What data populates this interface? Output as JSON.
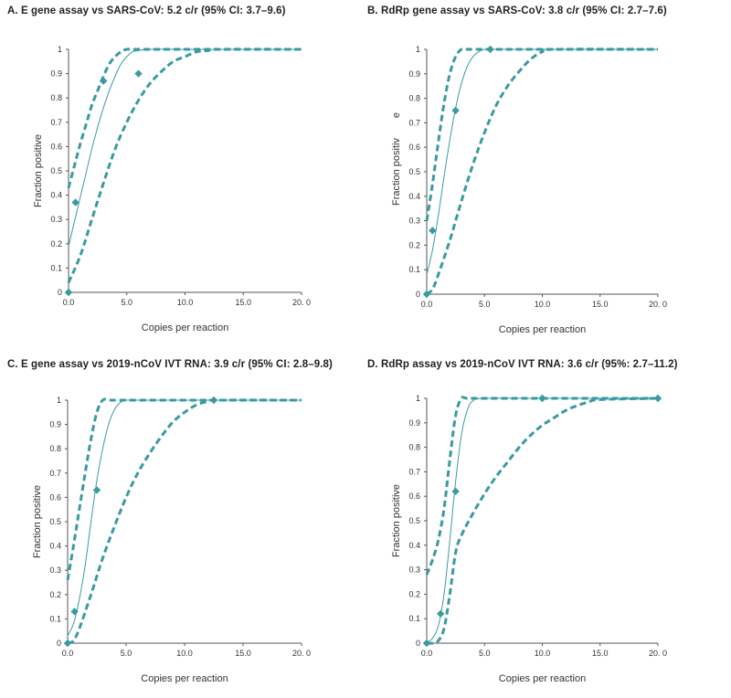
{
  "chart_data": [
    {
      "type": "line",
      "title": "A. E gene assay vs SARS-CoV: 5.2 c/r (95% CI: 3.7–9.6)",
      "xlabel": "Copies per reaction",
      "ylabel": "Fraction positive",
      "xlim": [
        0,
        20
      ],
      "ylim": [
        0,
        1
      ],
      "x_ticks": [
        "0.0",
        "5.0",
        "10.0",
        "15.0",
        "20. 0"
      ],
      "y_ticks": [
        "0",
        "0.1",
        "0.2",
        "0.3",
        "0.4",
        "0.5",
        "0.6",
        "0.7",
        "0.8",
        "0.9",
        "1"
      ],
      "series": [
        {
          "style": "points",
          "x": [
            0,
            0.6,
            3,
            6
          ],
          "y": [
            0,
            0.37,
            0.87,
            0.9
          ]
        },
        {
          "style": "solid",
          "x": [
            0,
            0.5,
            1,
            1.5,
            2,
            2.5,
            3,
            3.5,
            4,
            4.5,
            5,
            5.5,
            6,
            7,
            10,
            20
          ],
          "y": [
            0.19,
            0.29,
            0.39,
            0.49,
            0.59,
            0.68,
            0.76,
            0.83,
            0.89,
            0.94,
            0.97,
            0.99,
            0.995,
            1,
            1,
            1
          ]
        },
        {
          "style": "dashed",
          "x": [
            0,
            0.5,
            1,
            1.5,
            2,
            2.5,
            3,
            3.5,
            4,
            4.5,
            5,
            6,
            10,
            20
          ],
          "y": [
            0.43,
            0.52,
            0.61,
            0.69,
            0.77,
            0.83,
            0.89,
            0.94,
            0.97,
            0.99,
            1,
            1,
            1,
            1
          ]
        },
        {
          "style": "dashed",
          "x": [
            0,
            1,
            2,
            3,
            4,
            5,
            6,
            7,
            8,
            9,
            10,
            11,
            12,
            13,
            20
          ],
          "y": [
            0.04,
            0.15,
            0.3,
            0.45,
            0.59,
            0.7,
            0.79,
            0.86,
            0.91,
            0.95,
            0.97,
            0.99,
            0.995,
            1,
            1
          ]
        }
      ]
    },
    {
      "type": "line",
      "title": "B. RdRp gene assay vs SARS-CoV: 3.8 c/r (95% CI: 2.7–7.6)",
      "xlabel": "Copies per reaction",
      "ylabel": "Fraction positiv",
      "ylabel_suffix": "e",
      "xlim": [
        0,
        20
      ],
      "ylim": [
        0,
        1
      ],
      "x_ticks": [
        "0.0",
        "5.0",
        "10.0",
        "15.0",
        "20. 0"
      ],
      "y_ticks": [
        "0",
        "0.1",
        "0.2",
        "0.3",
        "0.4",
        "0.5",
        "0.6",
        "0.7",
        "0.8",
        "0.9",
        "1"
      ],
      "series": [
        {
          "style": "points",
          "x": [
            0,
            0.5,
            2.5,
            5.5
          ],
          "y": [
            0,
            0.26,
            0.75,
            1
          ]
        },
        {
          "style": "solid",
          "x": [
            0,
            0.5,
            1,
            1.5,
            2,
            2.5,
            3,
            3.5,
            4,
            4.5,
            5,
            6,
            10,
            20
          ],
          "y": [
            0.08,
            0.18,
            0.32,
            0.48,
            0.63,
            0.76,
            0.86,
            0.93,
            0.97,
            0.99,
            1,
            1,
            1,
            1
          ]
        },
        {
          "style": "dashed",
          "x": [
            0,
            0.5,
            1,
            1.5,
            2,
            2.5,
            3,
            3.5,
            4,
            6,
            10,
            20
          ],
          "y": [
            0.3,
            0.45,
            0.62,
            0.78,
            0.9,
            0.97,
            1,
            1,
            1,
            1,
            1,
            1
          ]
        },
        {
          "style": "dashed",
          "x": [
            0,
            0.5,
            1,
            2,
            3,
            4,
            5,
            6,
            7,
            8,
            9,
            10,
            11,
            20
          ],
          "y": [
            0,
            0.02,
            0.08,
            0.22,
            0.38,
            0.53,
            0.66,
            0.77,
            0.85,
            0.91,
            0.96,
            0.99,
            1,
            1
          ]
        }
      ]
    },
    {
      "type": "line",
      "title": "C. E gene assay vs 2019-nCoV IVT RNA: 3.9 c/r (95% CI: 2.8–9.8)",
      "xlabel": "Copies per reaction",
      "ylabel": "Fraction positive",
      "xlim": [
        0,
        20
      ],
      "ylim": [
        0,
        1
      ],
      "x_ticks": [
        "0.0",
        "5.0",
        "10.0",
        "15.0",
        "20. 0"
      ],
      "y_ticks": [
        "0",
        "0.1",
        "0.2",
        "0.3",
        "0.4",
        "0.5",
        "0.6",
        "0.7",
        "0.8",
        "0.9",
        "1"
      ],
      "series": [
        {
          "style": "points",
          "x": [
            0,
            0.6,
            2.5,
            12.5
          ],
          "y": [
            0,
            0.13,
            0.63,
            1
          ]
        },
        {
          "style": "solid",
          "x": [
            0,
            0.5,
            1,
            1.5,
            2,
            2.5,
            3,
            3.5,
            4,
            4.5,
            5,
            6,
            10,
            20
          ],
          "y": [
            0.03,
            0.08,
            0.18,
            0.32,
            0.5,
            0.67,
            0.8,
            0.9,
            0.96,
            0.99,
            1,
            1,
            1,
            1
          ]
        },
        {
          "style": "dashed",
          "x": [
            0,
            0.5,
            1,
            1.5,
            2,
            2.5,
            3,
            3.5,
            4,
            6,
            10,
            20
          ],
          "y": [
            0.26,
            0.4,
            0.55,
            0.7,
            0.84,
            0.95,
            1,
            1,
            1,
            1,
            1,
            1
          ]
        },
        {
          "style": "dashed",
          "x": [
            0,
            0.5,
            1,
            2,
            3,
            4,
            5,
            6,
            7,
            8,
            9,
            10,
            11,
            12,
            13,
            20
          ],
          "y": [
            0,
            0.01,
            0.06,
            0.2,
            0.35,
            0.48,
            0.6,
            0.7,
            0.78,
            0.85,
            0.91,
            0.95,
            0.98,
            0.995,
            1,
            1
          ]
        }
      ]
    },
    {
      "type": "line",
      "title": "D. RdRp assay vs 2019-nCoV IVT RNA: 3.6 c/r (95%: 2.7–11.2)",
      "xlabel": "Copies per reaction",
      "ylabel": "Fraction positive",
      "xlim": [
        0,
        20
      ],
      "ylim": [
        0,
        1
      ],
      "x_ticks": [
        "0.0",
        "5.0",
        "10.0",
        "15.0",
        "20. 0"
      ],
      "y_ticks": [
        "0",
        "0.1",
        "0.2",
        "0.3",
        "0.4",
        "0.5",
        "0.6",
        "0.7",
        "0.8",
        "0.9",
        "1"
      ],
      "series": [
        {
          "style": "points",
          "x": [
            0,
            1.2,
            2.5,
            10,
            20
          ],
          "y": [
            0,
            0.12,
            0.62,
            1,
            1
          ]
        },
        {
          "style": "solid",
          "x": [
            0,
            0.5,
            1,
            1.5,
            2,
            2.5,
            3,
            3.5,
            4,
            5,
            10,
            20
          ],
          "y": [
            0,
            0.02,
            0.07,
            0.2,
            0.42,
            0.66,
            0.85,
            0.95,
            0.99,
            1,
            1,
            1
          ]
        },
        {
          "style": "dashed",
          "x": [
            0,
            0.5,
            1,
            1.5,
            2,
            2.5,
            3,
            3.5,
            5,
            10,
            20
          ],
          "y": [
            0.28,
            0.34,
            0.42,
            0.55,
            0.75,
            0.93,
            1,
            1,
            1,
            1,
            1
          ]
        },
        {
          "style": "dashed",
          "x": [
            0,
            0.5,
            1,
            1.5,
            2,
            2.5,
            3,
            4,
            5,
            6,
            7,
            8,
            9,
            10,
            11,
            12,
            13,
            14,
            15,
            20
          ],
          "y": [
            0,
            0,
            0.01,
            0.06,
            0.2,
            0.37,
            0.44,
            0.53,
            0.61,
            0.68,
            0.74,
            0.8,
            0.85,
            0.89,
            0.92,
            0.95,
            0.97,
            0.985,
            0.995,
            1
          ]
        }
      ]
    }
  ],
  "colors": {
    "series": "#3a9aa2",
    "axis": "#555555"
  }
}
